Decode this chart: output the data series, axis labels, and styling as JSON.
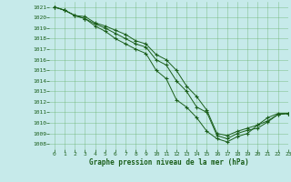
{
  "bg_color": "#c6eaea",
  "grid_color": "#5aaa5a",
  "line_color": "#1a5e1a",
  "marker_color": "#1a5e1a",
  "xlabel": "Graphe pression niveau de la mer (hPa)",
  "xlim": [
    -0.5,
    23
  ],
  "ylim": [
    1007.5,
    1021.5
  ],
  "xticks": [
    0,
    1,
    2,
    3,
    4,
    5,
    6,
    7,
    8,
    9,
    10,
    11,
    12,
    13,
    14,
    15,
    16,
    17,
    18,
    19,
    20,
    21,
    22,
    23
  ],
  "yticks": [
    1008,
    1009,
    1010,
    1011,
    1012,
    1013,
    1014,
    1015,
    1016,
    1017,
    1018,
    1019,
    1020,
    1021
  ],
  "series": [
    [
      1021.0,
      1020.7,
      1020.2,
      1019.9,
      1019.2,
      1018.7,
      1018.0,
      1017.5,
      1017.0,
      1016.6,
      1015.0,
      1014.2,
      1012.2,
      1011.5,
      1010.5,
      1009.2,
      1008.5,
      1008.2,
      1008.7,
      1009.0,
      1009.8,
      1010.5,
      1010.9,
      1010.9
    ],
    [
      1021.0,
      1020.7,
      1020.2,
      1019.9,
      1019.4,
      1019.0,
      1018.5,
      1018.0,
      1017.5,
      1017.2,
      1016.0,
      1015.5,
      1014.0,
      1013.0,
      1011.5,
      1011.0,
      1008.8,
      1008.5,
      1009.0,
      1009.3,
      1009.5,
      1010.1,
      1010.8,
      1010.9
    ],
    [
      1021.0,
      1020.7,
      1020.2,
      1020.1,
      1019.5,
      1019.2,
      1018.8,
      1018.4,
      1017.8,
      1017.5,
      1016.5,
      1016.0,
      1015.0,
      1013.5,
      1012.5,
      1011.2,
      1009.0,
      1008.8,
      1009.2,
      1009.5,
      1009.8,
      1010.2,
      1010.8,
      1010.9
    ]
  ]
}
